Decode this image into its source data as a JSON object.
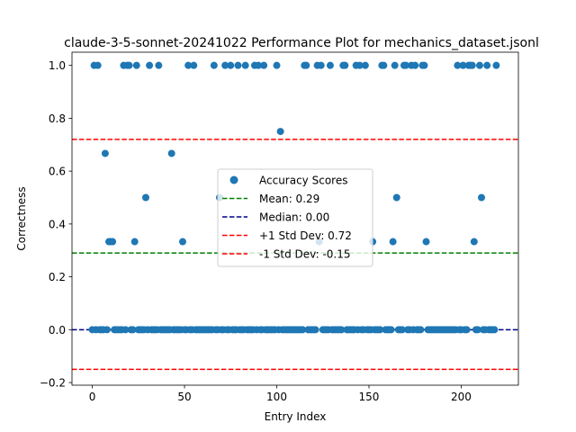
{
  "chart_data": {
    "type": "scatter",
    "title": "claude-3-5-sonnet-20241022 Performance Plot for mechanics_dataset.jsonl",
    "xlabel": "Entry Index",
    "ylabel": "Correctness",
    "xlim": [
      -11,
      231
    ],
    "ylim": [
      -0.21,
      1.05
    ],
    "xticks": [
      0,
      50,
      100,
      150,
      200
    ],
    "yticks": [
      -0.2,
      0.0,
      0.2,
      0.4,
      0.6,
      0.8,
      1.0
    ],
    "ytick_labels": [
      "−0.2",
      "0.0",
      "0.2",
      "0.4",
      "0.6",
      "0.8",
      "1.0"
    ],
    "grid": false,
    "legend_position": "center",
    "series": [
      {
        "name": "Accuracy Scores",
        "color": "#1f77b4",
        "x": [
          0,
          1,
          2,
          3,
          4,
          5,
          6,
          7,
          8,
          9,
          10,
          11,
          12,
          13,
          14,
          15,
          16,
          17,
          18,
          19,
          20,
          21,
          22,
          23,
          24,
          25,
          26,
          27,
          28,
          29,
          30,
          31,
          32,
          33,
          34,
          35,
          36,
          37,
          38,
          39,
          40,
          41,
          42,
          43,
          44,
          45,
          46,
          47,
          48,
          49,
          50,
          51,
          52,
          53,
          54,
          55,
          56,
          57,
          58,
          59,
          60,
          61,
          62,
          63,
          64,
          65,
          66,
          67,
          68,
          69,
          70,
          71,
          72,
          73,
          74,
          75,
          76,
          77,
          78,
          79,
          80,
          81,
          82,
          83,
          84,
          85,
          86,
          87,
          88,
          89,
          90,
          91,
          92,
          93,
          94,
          95,
          96,
          97,
          98,
          99,
          100,
          101,
          102,
          103,
          104,
          105,
          106,
          107,
          108,
          109,
          110,
          111,
          112,
          113,
          114,
          115,
          116,
          117,
          118,
          119,
          120,
          121,
          122,
          123,
          124,
          125,
          126,
          127,
          128,
          129,
          130,
          131,
          132,
          133,
          134,
          135,
          136,
          137,
          138,
          139,
          140,
          141,
          142,
          143,
          144,
          145,
          146,
          147,
          148,
          149,
          150,
          151,
          152,
          153,
          154,
          155,
          156,
          157,
          158,
          159,
          160,
          161,
          162,
          163,
          164,
          165,
          166,
          167,
          168,
          169,
          170,
          171,
          172,
          173,
          174,
          175,
          176,
          177,
          178,
          179,
          180,
          181,
          182,
          183,
          184,
          185,
          186,
          187,
          188,
          189,
          190,
          191,
          192,
          193,
          194,
          195,
          196,
          197,
          198,
          199,
          200,
          201,
          202,
          203,
          204,
          205,
          206,
          207,
          208,
          209,
          210,
          211,
          212,
          213,
          214,
          215,
          216,
          217,
          218,
          219
        ],
        "y": [
          0,
          1,
          0,
          1,
          0,
          0,
          0,
          0.667,
          0,
          0.333,
          0.333,
          0.333,
          0,
          0,
          0,
          0,
          0,
          1,
          0,
          1,
          1,
          0,
          0,
          0.333,
          1,
          0,
          0,
          0,
          0,
          0.5,
          0,
          1,
          0,
          0,
          0,
          0,
          1,
          0,
          0,
          0,
          0,
          0,
          0,
          0.667,
          0,
          0,
          0,
          0,
          0,
          0.333,
          0,
          0,
          1,
          0,
          0,
          1,
          0,
          0,
          0,
          0,
          0,
          0,
          0,
          0,
          0,
          0,
          1,
          0,
          0,
          0.5,
          0,
          0,
          1,
          0,
          0,
          1,
          0,
          0,
          0,
          1,
          0,
          0,
          0,
          1,
          0,
          0,
          0,
          0,
          1,
          0,
          1,
          0,
          0,
          1,
          0,
          0,
          0,
          0,
          0,
          0,
          1,
          0,
          0.75,
          0,
          0,
          0,
          0,
          0,
          0,
          0,
          0,
          0,
          0,
          0,
          0,
          1,
          1,
          0,
          0,
          0,
          0,
          0,
          1,
          0.333,
          1,
          0,
          0,
          0,
          0,
          1,
          0,
          0,
          0,
          0,
          0,
          0,
          1,
          1,
          0,
          0,
          0,
          0,
          0,
          1,
          0,
          1,
          0,
          0,
          1,
          0,
          0,
          0,
          0.333,
          0,
          0,
          0,
          0,
          1,
          1,
          0,
          0,
          0,
          0,
          0.333,
          1,
          0.5,
          0,
          0,
          0,
          1,
          1,
          0,
          0,
          1,
          0,
          1,
          0,
          0,
          0,
          1,
          1,
          0.333,
          0,
          0,
          0,
          0,
          0,
          0,
          0,
          0,
          0,
          0,
          0,
          0,
          0,
          0,
          0,
          0,
          1,
          0,
          0,
          1,
          0,
          0,
          1,
          1,
          1,
          0.333,
          0,
          0,
          1,
          0.5,
          0,
          0,
          1,
          0,
          0,
          0,
          0,
          1
        ]
      }
    ],
    "reference_lines": [
      {
        "name": "Mean: 0.29",
        "value": 0.29,
        "color": "#008000",
        "dash": "dashed"
      },
      {
        "name": "Median: 0.00",
        "value": 0.0,
        "color": "#00008b",
        "dash": "dashed"
      },
      {
        "name": "+1 Std Dev: 0.72",
        "value": 0.72,
        "color": "#ff0000",
        "dash": "dashed"
      },
      {
        "name": "-1 Std Dev: -0.15",
        "value": -0.15,
        "color": "#ff0000",
        "dash": "dashed"
      }
    ]
  }
}
